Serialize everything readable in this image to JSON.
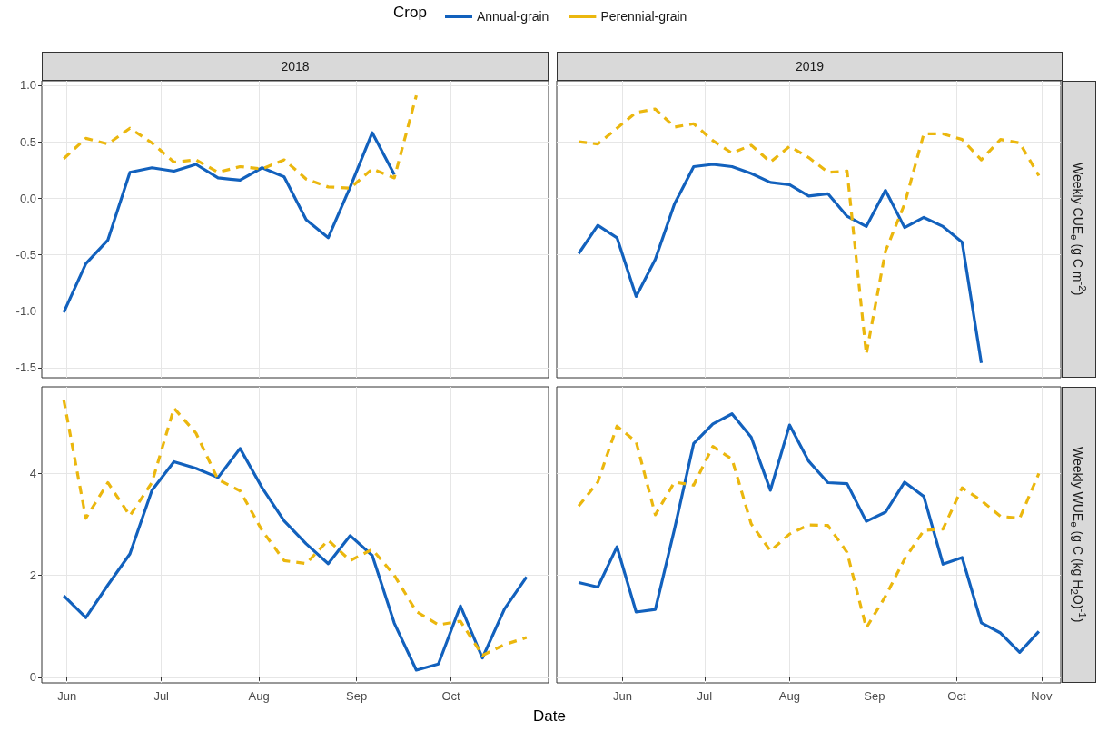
{
  "chart_data": [
    {
      "type": "line",
      "title": "2018",
      "legend_title": "Crop",
      "legend": "top",
      "grid": true,
      "tick_labels": "y",
      "x": [
        "2018-05-31",
        "2018-06-07",
        "2018-06-14",
        "2018-06-21",
        "2018-06-28",
        "2018-07-05",
        "2018-07-12",
        "2018-07-19",
        "2018-07-26",
        "2018-08-02",
        "2018-08-09",
        "2018-08-16",
        "2018-08-23",
        "2018-08-30",
        "2018-09-06",
        "2018-09-13",
        "2018-09-20"
      ],
      "xlim": [
        "2018-05-24",
        "2018-11-01"
      ],
      "xticks": [
        {
          "value": "2018-06-01",
          "label": null
        },
        {
          "value": "2018-07-01",
          "label": null
        },
        {
          "value": "2018-08-01",
          "label": null
        },
        {
          "value": "2018-09-01",
          "label": null
        },
        {
          "value": "2018-10-01",
          "label": null
        }
      ],
      "ylim": [
        -1.59,
        1.04
      ],
      "yticks": [
        -1.5,
        {
          "value": -1,
          "label": "-1.0"
        },
        -0.5,
        {
          "value": 0,
          "label": "0.0"
        },
        0.5,
        {
          "value": 1,
          "label": "1.0"
        }
      ],
      "series": [
        {
          "name": "Annual-grain",
          "color": "#1261bd",
          "line_style": "solid",
          "values": [
            -1.01,
            -0.58,
            -0.37,
            0.23,
            0.27,
            0.24,
            0.3,
            0.18,
            0.16,
            0.27,
            0.19,
            -0.19,
            -0.35,
            0.1,
            0.58,
            0.21,
            null
          ]
        },
        {
          "name": "Perennial-grain",
          "color": "#ebb70e",
          "line_style": "dashed",
          "values": [
            0.35,
            0.53,
            0.48,
            0.62,
            0.49,
            0.32,
            0.34,
            0.23,
            0.28,
            0.26,
            0.34,
            0.17,
            0.1,
            0.09,
            0.26,
            0.18,
            0.91
          ]
        }
      ]
    },
    {
      "type": "line",
      "title": "2019",
      "ylabel": "Weekly CUE$_{e}$ (g C m$^{-2}$)",
      "grid": true,
      "tick_labels": false,
      "x": [
        "2019-05-16",
        "2019-05-23",
        "2019-05-30",
        "2019-06-06",
        "2019-06-13",
        "2019-06-20",
        "2019-06-27",
        "2019-07-04",
        "2019-07-11",
        "2019-07-18",
        "2019-07-25",
        "2019-08-01",
        "2019-08-08",
        "2019-08-15",
        "2019-08-22",
        "2019-08-29",
        "2019-09-05",
        "2019-09-12",
        "2019-09-19",
        "2019-09-26",
        "2019-10-03",
        "2019-10-10",
        "2019-10-17",
        "2019-10-24",
        "2019-10-31"
      ],
      "xlim": [
        "2019-05-08",
        "2019-11-08"
      ],
      "xticks": [
        {
          "value": "2019-06-01",
          "label": null
        },
        {
          "value": "2019-07-01",
          "label": null
        },
        {
          "value": "2019-08-01",
          "label": null
        },
        {
          "value": "2019-09-01",
          "label": null
        },
        {
          "value": "2019-10-01",
          "label": null
        },
        {
          "value": "2019-11-01",
          "label": null
        }
      ],
      "ylim": [
        -1.59,
        1.04
      ],
      "yticks": [
        {
          "value": -1.5,
          "label": null
        },
        {
          "value": -1,
          "label": null
        },
        {
          "value": -0.5,
          "label": null
        },
        {
          "value": 0,
          "label": null
        },
        {
          "value": 0.5,
          "label": null
        },
        {
          "value": 1,
          "label": null
        }
      ],
      "series": [
        {
          "color": "#1261bd",
          "line_style": "solid",
          "values": [
            -0.49,
            -0.24,
            -0.35,
            -0.87,
            -0.54,
            -0.05,
            0.28,
            0.3,
            0.28,
            0.22,
            0.14,
            0.12,
            0.02,
            0.04,
            -0.16,
            -0.25,
            0.07,
            -0.26,
            -0.17,
            -0.25,
            -0.39,
            -1.46,
            null,
            null,
            null
          ]
        },
        {
          "color": "#ebb70e",
          "line_style": "dashed",
          "values": [
            0.5,
            0.48,
            0.62,
            0.76,
            0.79,
            0.63,
            0.66,
            0.51,
            0.4,
            0.47,
            0.32,
            0.46,
            0.36,
            0.23,
            0.24,
            -1.38,
            -0.47,
            -0.05,
            0.57,
            0.57,
            0.52,
            0.34,
            0.52,
            0.49,
            0.2
          ]
        }
      ]
    },
    {
      "type": "line",
      "xlabel": "Date",
      "grid": true,
      "x": [
        "2018-05-31",
        "2018-06-07",
        "2018-06-14",
        "2018-06-21",
        "2018-06-28",
        "2018-07-05",
        "2018-07-12",
        "2018-07-19",
        "2018-07-26",
        "2018-08-02",
        "2018-08-09",
        "2018-08-16",
        "2018-08-23",
        "2018-08-30",
        "2018-09-06",
        "2018-09-13",
        "2018-09-20",
        "2018-09-27",
        "2018-10-04",
        "2018-10-11",
        "2018-10-18",
        "2018-10-25"
      ],
      "xlim": [
        "2018-05-24",
        "2018-11-01"
      ],
      "xticks": [
        {
          "value": "2018-06-01",
          "label": "Jun"
        },
        {
          "value": "2018-07-01",
          "label": "Jul"
        },
        {
          "value": "2018-08-01",
          "label": "Aug"
        },
        {
          "value": "2018-09-01",
          "label": "Sep"
        },
        {
          "value": "2018-10-01",
          "label": "Oct"
        }
      ],
      "ylim": [
        -0.11,
        5.7
      ],
      "yticks": [
        0,
        2,
        4
      ],
      "series": [
        {
          "color": "#1261bd",
          "line_style": "solid",
          "values": [
            1.6,
            1.17,
            1.81,
            2.42,
            3.67,
            4.23,
            4.1,
            3.92,
            4.49,
            3.72,
            3.07,
            2.62,
            2.23,
            2.78,
            2.39,
            1.06,
            0.14,
            0.26,
            1.4,
            0.38,
            1.34,
            1.97
          ]
        },
        {
          "color": "#ebb70e",
          "line_style": "dashed",
          "values": [
            5.44,
            3.12,
            3.82,
            3.17,
            3.82,
            5.28,
            4.79,
            3.88,
            3.66,
            2.88,
            2.29,
            2.23,
            2.69,
            2.29,
            2.51,
            2.0,
            1.29,
            1.03,
            1.1,
            0.43,
            0.64,
            0.78
          ]
        }
      ]
    },
    {
      "type": "line",
      "ylabel": "Weekly WUE$_{e}$ (g C (kg H$_{2}$O)$^{-1}$)",
      "grid": true,
      "tick_labels": "x",
      "x": [
        "2019-05-16",
        "2019-05-23",
        "2019-05-30",
        "2019-06-06",
        "2019-06-13",
        "2019-06-20",
        "2019-06-27",
        "2019-07-04",
        "2019-07-11",
        "2019-07-18",
        "2019-07-25",
        "2019-08-01",
        "2019-08-08",
        "2019-08-15",
        "2019-08-22",
        "2019-08-29",
        "2019-09-05",
        "2019-09-12",
        "2019-09-19",
        "2019-09-26",
        "2019-10-03",
        "2019-10-10",
        "2019-10-17",
        "2019-10-24",
        "2019-10-31"
      ],
      "xlim": [
        "2019-05-08",
        "2019-11-08"
      ],
      "xticks": [
        {
          "value": "2019-06-01",
          "label": "Jun"
        },
        {
          "value": "2019-07-01",
          "label": "Jul"
        },
        {
          "value": "2019-08-01",
          "label": "Aug"
        },
        {
          "value": "2019-09-01",
          "label": "Sep"
        },
        {
          "value": "2019-10-01",
          "label": "Oct"
        },
        {
          "value": "2019-11-01",
          "label": "Nov"
        }
      ],
      "ylim": [
        -0.11,
        5.7
      ],
      "yticks": [
        0,
        2,
        4
      ],
      "series": [
        {
          "color": "#1261bd",
          "line_style": "solid",
          "values": [
            1.86,
            1.77,
            2.56,
            1.28,
            1.33,
            2.91,
            4.59,
            4.97,
            5.17,
            4.71,
            3.67,
            4.95,
            4.24,
            3.82,
            3.8,
            3.06,
            3.24,
            3.83,
            3.55,
            2.22,
            2.35,
            1.07,
            0.87,
            0.49,
            0.9
          ]
        },
        {
          "color": "#ebb70e",
          "line_style": "dashed",
          "values": [
            3.36,
            3.83,
            4.93,
            4.62,
            3.19,
            3.83,
            3.77,
            4.53,
            4.28,
            3.01,
            2.48,
            2.81,
            2.99,
            2.98,
            2.45,
            0.97,
            1.59,
            2.32,
            2.88,
            2.91,
            3.72,
            3.47,
            3.16,
            3.12,
            4.0
          ]
        }
      ]
    }
  ]
}
